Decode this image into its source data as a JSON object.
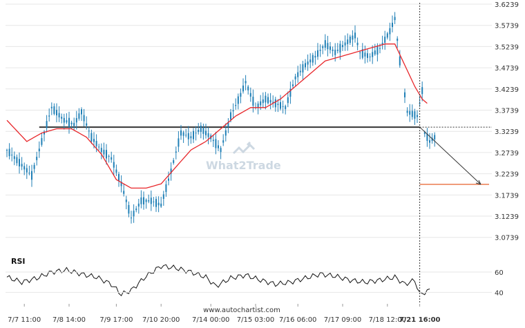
{
  "chart_data": {
    "type": "candlestick",
    "price_axis": {
      "ticks": [
        "3.6239",
        "3.5739",
        "3.5239",
        "3.4739",
        "3.4239",
        "3.3739",
        "3.3239",
        "3.2739",
        "3.2239",
        "3.1739",
        "3.1239",
        "3.0739"
      ],
      "range": [
        3.0539,
        3.6239
      ]
    },
    "x_axis": {
      "ticks": [
        "7/7 11:00",
        "7/8 14:00",
        "7/9 17:00",
        "7/10 20:00",
        "7/14 00:00",
        "7/15 03:00",
        "7/16 06:00",
        "7/17 09:00",
        "7/18 12:00",
        "7/21 16:00"
      ],
      "current_time": "7/21 16:00"
    },
    "price_waypoints": [
      [
        0,
        3.28
      ],
      [
        10,
        3.22
      ],
      [
        14,
        3.3
      ],
      [
        18,
        3.38
      ],
      [
        23,
        3.35
      ],
      [
        27,
        3.34
      ],
      [
        30,
        3.37
      ],
      [
        34,
        3.31
      ],
      [
        38,
        3.28
      ],
      [
        42,
        3.26
      ],
      [
        46,
        3.2
      ],
      [
        50,
        3.12
      ],
      [
        54,
        3.16
      ],
      [
        58,
        3.16
      ],
      [
        62,
        3.15
      ],
      [
        66,
        3.23
      ],
      [
        70,
        3.32
      ],
      [
        74,
        3.31
      ],
      [
        78,
        3.33
      ],
      [
        82,
        3.31
      ],
      [
        86,
        3.28
      ],
      [
        90,
        3.36
      ],
      [
        94,
        3.41
      ],
      [
        96,
        3.44
      ],
      [
        100,
        3.38
      ],
      [
        104,
        3.4
      ],
      [
        108,
        3.39
      ],
      [
        112,
        3.38
      ],
      [
        116,
        3.45
      ],
      [
        120,
        3.48
      ],
      [
        124,
        3.5
      ],
      [
        128,
        3.53
      ],
      [
        132,
        3.51
      ],
      [
        136,
        3.53
      ],
      [
        140,
        3.55
      ],
      [
        142,
        3.51
      ],
      [
        146,
        3.5
      ],
      [
        150,
        3.52
      ],
      [
        154,
        3.56
      ],
      [
        156,
        3.59
      ],
      [
        158,
        3.49
      ],
      [
        161,
        3.37
      ],
      [
        165,
        3.36
      ],
      [
        167,
        3.42
      ],
      [
        168,
        3.32
      ],
      [
        170,
        3.3
      ],
      [
        172,
        3.31
      ]
    ],
    "ma_waypoints": [
      [
        0,
        3.35
      ],
      [
        8,
        3.3
      ],
      [
        14,
        3.32
      ],
      [
        20,
        3.33
      ],
      [
        26,
        3.33
      ],
      [
        32,
        3.31
      ],
      [
        38,
        3.27
      ],
      [
        44,
        3.21
      ],
      [
        50,
        3.19
      ],
      [
        56,
        3.19
      ],
      [
        62,
        3.2
      ],
      [
        68,
        3.24
      ],
      [
        74,
        3.28
      ],
      [
        80,
        3.3
      ],
      [
        86,
        3.33
      ],
      [
        92,
        3.36
      ],
      [
        98,
        3.38
      ],
      [
        104,
        3.38
      ],
      [
        110,
        3.4
      ],
      [
        116,
        3.43
      ],
      [
        122,
        3.46
      ],
      [
        128,
        3.49
      ],
      [
        134,
        3.5
      ],
      [
        140,
        3.51
      ],
      [
        146,
        3.52
      ],
      [
        152,
        3.53
      ],
      [
        156,
        3.53
      ],
      [
        160,
        3.48
      ],
      [
        164,
        3.43
      ],
      [
        167,
        3.4
      ],
      [
        169,
        3.39
      ]
    ],
    "resistance_level": 3.3339,
    "target_level": 3.1989,
    "projection": {
      "from": 3.3339,
      "to": 3.1989
    },
    "rsi": {
      "label": "RSI",
      "ticks": [
        "60",
        "40"
      ],
      "range": [
        30,
        75
      ],
      "waypoints": [
        [
          0,
          55
        ],
        [
          6,
          50
        ],
        [
          12,
          54
        ],
        [
          18,
          60
        ],
        [
          24,
          62
        ],
        [
          30,
          58
        ],
        [
          36,
          55
        ],
        [
          42,
          48
        ],
        [
          46,
          38
        ],
        [
          50,
          42
        ],
        [
          56,
          56
        ],
        [
          62,
          66
        ],
        [
          68,
          64
        ],
        [
          74,
          60
        ],
        [
          80,
          55
        ],
        [
          84,
          46
        ],
        [
          90,
          54
        ],
        [
          96,
          57
        ],
        [
          102,
          52
        ],
        [
          108,
          48
        ],
        [
          114,
          50
        ],
        [
          120,
          54
        ],
        [
          126,
          58
        ],
        [
          132,
          56
        ],
        [
          138,
          52
        ],
        [
          144,
          50
        ],
        [
          150,
          52
        ],
        [
          156,
          55
        ],
        [
          160,
          48
        ],
        [
          164,
          52
        ],
        [
          166,
          38
        ],
        [
          168,
          40
        ],
        [
          170,
          42
        ]
      ]
    },
    "colors": {
      "candle": "#1f7fb6",
      "ma": "#e8262a",
      "level": "#333333",
      "target": "#e8602a",
      "grid": "#e6e6e6",
      "rsi": "#111111"
    }
  },
  "watermark": "What2Trade",
  "site": "www.autochartist.com"
}
